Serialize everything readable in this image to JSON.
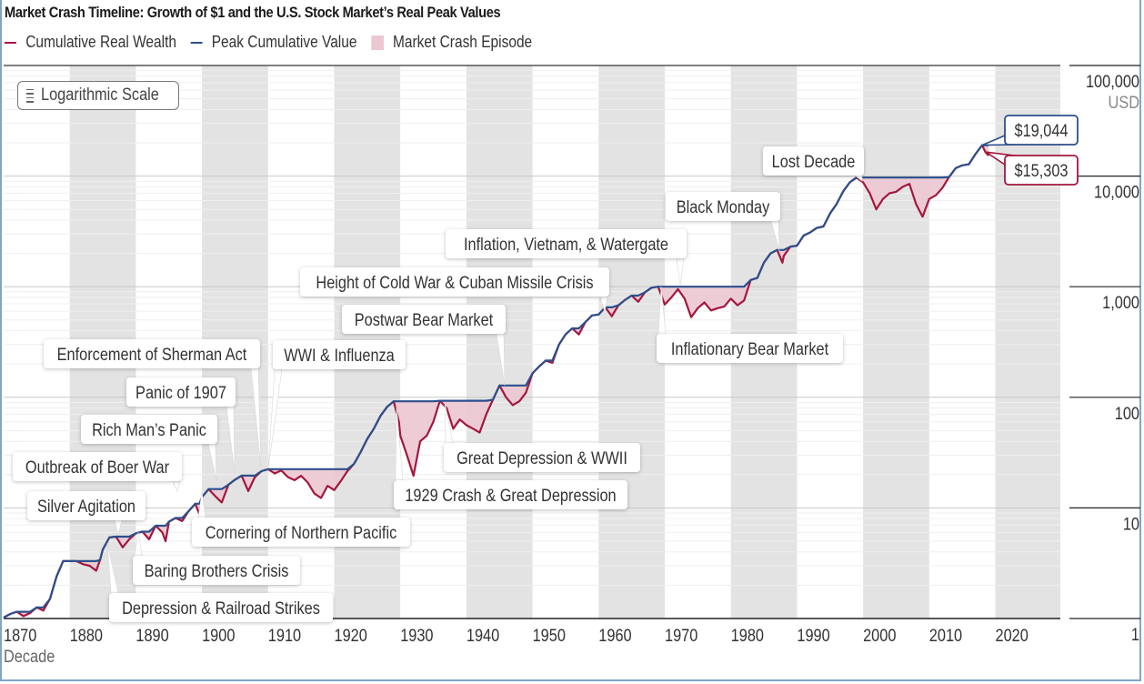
{
  "title": "Market Crash Timeline: Growth of $1 and the U.S. Stock Market’s Real Peak Values",
  "legend": [
    {
      "label": "Cumulative Real Wealth",
      "color": "#a3173e",
      "kind": "line"
    },
    {
      "label": "Peak Cumulative Value",
      "color": "#2c4f8c",
      "kind": "line"
    },
    {
      "label": "Market Crash Episode",
      "color": "#ecc7d1",
      "kind": "box"
    }
  ],
  "scale_button": {
    "label": "Logarithmic Scale",
    "icon": "lines-icon"
  },
  "colors": {
    "wealth": "#a3173e",
    "peak": "#2c4f8c",
    "crash_fill": "#ecc7d1",
    "band": "#e3e3e3",
    "grid": "#cfcfcf"
  },
  "chart_data": {
    "type": "line",
    "title": "Market Crash Timeline: Growth of $1 and the U.S. Stock Market’s Real Peak Values",
    "xlabel": "Decade",
    "ylabel": "USD",
    "yscale": "log",
    "ylim": [
      1,
      100000
    ],
    "xlim": [
      1870,
      2028
    ],
    "x_ticks": [
      "1870",
      "1880",
      "1890",
      "1900",
      "1910",
      "1920",
      "1930",
      "1940",
      "1950",
      "1960",
      "1970",
      "1980",
      "1990",
      "2000",
      "2010",
      "2020"
    ],
    "y_ticks": [
      {
        "value": 1,
        "label": "1"
      },
      {
        "value": 10,
        "label": "10"
      },
      {
        "value": 100,
        "label": "100"
      },
      {
        "value": 1000,
        "label": "1,000"
      },
      {
        "value": 10000,
        "label": "10,000"
      },
      {
        "value": 100000,
        "label": "100,000"
      }
    ],
    "y_unit_label": "USD",
    "shaded_decades": [
      1880,
      1900,
      1920,
      1940,
      1960,
      1980,
      2000,
      2020
    ],
    "grid": true,
    "legend_position": "top-left",
    "series": [
      {
        "name": "Cumulative Real Wealth",
        "points": [
          [
            1870,
            1.02
          ],
          [
            1871,
            1.1
          ],
          [
            1872,
            1.15
          ],
          [
            1873,
            1.05
          ],
          [
            1874,
            1.12
          ],
          [
            1875,
            1.26
          ],
          [
            1876,
            1.18
          ],
          [
            1877,
            1.5
          ],
          [
            1878,
            2.4
          ],
          [
            1879,
            3.3
          ],
          [
            1880,
            3.3
          ],
          [
            1881,
            3.3
          ],
          [
            1882,
            3.1
          ],
          [
            1883,
            3.0
          ],
          [
            1884,
            2.7
          ],
          [
            1884.6,
            3.4
          ],
          [
            1885,
            4.2
          ],
          [
            1886,
            5.4
          ],
          [
            1887,
            5.5
          ],
          [
            1888,
            4.4
          ],
          [
            1889,
            5.2
          ],
          [
            1890,
            5.9
          ],
          [
            1891,
            6.1
          ],
          [
            1892,
            5.2
          ],
          [
            1893,
            6.9
          ],
          [
            1894,
            6.0
          ],
          [
            1894.5,
            5.0
          ],
          [
            1895,
            7.5
          ],
          [
            1896,
            8.1
          ],
          [
            1897,
            7.6
          ],
          [
            1898,
            9.4
          ],
          [
            1899,
            10.9
          ],
          [
            1899.6,
            8.8
          ],
          [
            1900,
            12.5
          ],
          [
            1901,
            14.8
          ],
          [
            1902,
            12.8
          ],
          [
            1903,
            11.2
          ],
          [
            1904,
            16.2
          ],
          [
            1905,
            18.0
          ],
          [
            1906,
            19.6
          ],
          [
            1907,
            14.2
          ],
          [
            1908,
            19.0
          ],
          [
            1909,
            21.5
          ],
          [
            1910,
            22.4
          ],
          [
            1911,
            20.5
          ],
          [
            1912,
            21.8
          ],
          [
            1913,
            19.0
          ],
          [
            1914,
            17.8
          ],
          [
            1915,
            19.5
          ],
          [
            1916,
            17.0
          ],
          [
            1917,
            13.5
          ],
          [
            1918,
            12.3
          ],
          [
            1919,
            15.8
          ],
          [
            1920,
            14.5
          ],
          [
            1921,
            17.5
          ],
          [
            1922,
            21.5
          ],
          [
            1923,
            25.0
          ],
          [
            1924,
            32.0
          ],
          [
            1925,
            42.0
          ],
          [
            1926,
            52.0
          ],
          [
            1927,
            68.0
          ],
          [
            1928,
            82.0
          ],
          [
            1929,
            92.0
          ],
          [
            1929.8,
            60.0
          ],
          [
            1930,
            45.0
          ],
          [
            1931,
            30.0
          ],
          [
            1932,
            19.5
          ],
          [
            1933,
            40.0
          ],
          [
            1934,
            45.0
          ],
          [
            1935,
            60.0
          ],
          [
            1936,
            93.0
          ],
          [
            1937,
            80.0
          ],
          [
            1938,
            52.0
          ],
          [
            1939,
            63.0
          ],
          [
            1940,
            56.0
          ],
          [
            1941,
            52.0
          ],
          [
            1942,
            48.0
          ],
          [
            1943,
            70.0
          ],
          [
            1944,
            95.0
          ],
          [
            1945,
            128.0
          ],
          [
            1946,
            100.0
          ],
          [
            1947,
            85.0
          ],
          [
            1948,
            92.0
          ],
          [
            1949,
            110.0
          ],
          [
            1950,
            165.0
          ],
          [
            1951,
            190.0
          ],
          [
            1952,
            215.0
          ],
          [
            1953,
            205.0
          ],
          [
            1954,
            300.0
          ],
          [
            1955,
            370.0
          ],
          [
            1956,
            420.0
          ],
          [
            1957,
            370.0
          ],
          [
            1958,
            480.0
          ],
          [
            1959,
            550.0
          ],
          [
            1960,
            560.0
          ],
          [
            1961,
            650.0
          ],
          [
            1962,
            540.0
          ],
          [
            1963,
            680.0
          ],
          [
            1964,
            760.0
          ],
          [
            1965,
            830.0
          ],
          [
            1966,
            730.0
          ],
          [
            1967,
            890.0
          ],
          [
            1968,
            980.0
          ],
          [
            1969,
            1000.0
          ],
          [
            1970,
            690.0
          ],
          [
            1971,
            800.0
          ],
          [
            1972,
            950.0
          ],
          [
            1973,
            780.0
          ],
          [
            1974,
            530.0
          ],
          [
            1975,
            640.0
          ],
          [
            1976,
            720.0
          ],
          [
            1977,
            610.0
          ],
          [
            1978,
            640.0
          ],
          [
            1979,
            660.0
          ],
          [
            1980,
            780.0
          ],
          [
            1981,
            680.0
          ],
          [
            1982,
            750.0
          ],
          [
            1983,
            1150.0
          ],
          [
            1984,
            1200.0
          ],
          [
            1985,
            1650.0
          ],
          [
            1986,
            2000.0
          ],
          [
            1987,
            2150.0
          ],
          [
            1987.8,
            1650.0
          ],
          [
            1988,
            1900.0
          ],
          [
            1989,
            2300.0
          ],
          [
            1990,
            2350.0
          ],
          [
            1991,
            2900.0
          ],
          [
            1992,
            3100.0
          ],
          [
            1993,
            3400.0
          ],
          [
            1994,
            3500.0
          ],
          [
            1995,
            4600.0
          ],
          [
            1996,
            5600.0
          ],
          [
            1997,
            7300.0
          ],
          [
            1998,
            8800.0
          ],
          [
            1999,
            9700.0
          ],
          [
            2000,
            8800.0
          ],
          [
            2001,
            7000.0
          ],
          [
            2002,
            5000.0
          ],
          [
            2003,
            6200.0
          ],
          [
            2004,
            7000.0
          ],
          [
            2005,
            7200.0
          ],
          [
            2006,
            8000.0
          ],
          [
            2007,
            8500.0
          ],
          [
            2008,
            5600.0
          ],
          [
            2009,
            4300.0
          ],
          [
            2010,
            6200.0
          ],
          [
            2011,
            6700.0
          ],
          [
            2012,
            7800.0
          ],
          [
            2013,
            9800.0
          ],
          [
            2014,
            11800.0
          ],
          [
            2015,
            12500.0
          ],
          [
            2016,
            12800.0
          ],
          [
            2017,
            15800.0
          ],
          [
            2018,
            19044.0
          ],
          [
            2018.5,
            16500.0
          ],
          [
            2019,
            15303.0
          ]
        ]
      },
      {
        "name": "Peak Cumulative Value",
        "derived_from": "running maximum of Cumulative Real Wealth",
        "final_value": 19044
      }
    ],
    "end_labels": [
      {
        "series": "Peak Cumulative Value",
        "label": "$19,044",
        "value": 19044
      },
      {
        "series": "Cumulative Real Wealth",
        "label": "$15,303",
        "value": 15303
      }
    ],
    "annotations": [
      {
        "label": "Silver Agitation",
        "year": 1873
      },
      {
        "label": "Depression & Railroad Strikes",
        "year": 1883
      },
      {
        "label": "Baring Brothers Crisis",
        "year": 1890
      },
      {
        "label": "Outbreak of Boer War",
        "year": 1895
      },
      {
        "label": "Cornering of Northern Pacific",
        "year": 1901
      },
      {
        "label": "Rich Man’s Panic",
        "year": 1902
      },
      {
        "label": "Panic of 1907",
        "year": 1906
      },
      {
        "label": "Enforcement of Sherman Act",
        "year": 1910
      },
      {
        "label": "WWI & Influenza",
        "year": 1910.5
      },
      {
        "label": "1929 Crash & Great Depression",
        "year": 1929
      },
      {
        "label": "Great Depression & WWII",
        "year": 1936
      },
      {
        "label": "Postwar Bear Market",
        "year": 1945
      },
      {
        "label": "Height of Cold War & Cuban Missile Crisis",
        "year": 1961
      },
      {
        "label": "Inflation, Vietnam, & Watergate",
        "year": 1972
      },
      {
        "label": "Inflationary Bear Market",
        "year": 1968
      },
      {
        "label": "Black Monday",
        "year": 1987
      },
      {
        "label": "Lost Decade",
        "year": 1999
      }
    ]
  }
}
